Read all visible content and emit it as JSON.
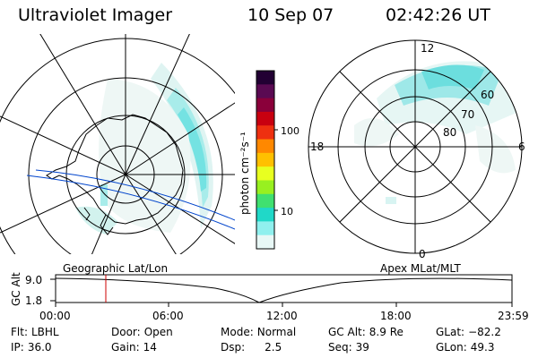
{
  "header": {
    "title": "Ultraviolet Imager",
    "date": "10 Sep 07",
    "time": "02:42:26 UT"
  },
  "colorbar": {
    "unit_label": "photon cm⁻²s⁻¹",
    "tick_labels": [
      "100",
      "10"
    ],
    "scale": "log",
    "colors": [
      "#220033",
      "#5a0a52",
      "#8a003a",
      "#c80010",
      "#ee3010",
      "#ff8800",
      "#ffc000",
      "#e8ff20",
      "#98f020",
      "#40e070",
      "#20d8c8",
      "#90f0ee",
      "#e8f8f6"
    ]
  },
  "geo_map": {
    "label": "Geographic Lat/Lon"
  },
  "mlt_polar": {
    "label": "Apex MLat/MLT",
    "mlt_labels": {
      "top": "12",
      "bottom": "0",
      "left": "18",
      "right": "6"
    },
    "mlat_labels": [
      "60",
      "70",
      "80"
    ]
  },
  "altitude_plot": {
    "ylabel": "GC Alt",
    "y_ticks": [
      "9.0",
      "1.8"
    ],
    "x_ticks": [
      "00:00",
      "06:00",
      "12:00",
      "18:00",
      "23:59"
    ],
    "marker_color": "#cc0000"
  },
  "status": {
    "filter_label": "Flt:",
    "filter_value": "LBHL",
    "ip_label": "IP:",
    "ip_value": "36.0",
    "door_label": "Door:",
    "door_value": "Open",
    "gain_label": "Gain:",
    "gain_value": "14",
    "mode_label": "Mode:",
    "mode_value": "Normal",
    "dsp_label": "Dsp:",
    "dsp_value": "2.5",
    "gcalt_label": "GC Alt:",
    "gcalt_value": "8.9 Re",
    "seq_label": "Seq:",
    "seq_value": "39",
    "glat_label": "GLat:",
    "glat_value": "−82.2",
    "glon_label": "GLon:",
    "glon_value": "49.3"
  }
}
